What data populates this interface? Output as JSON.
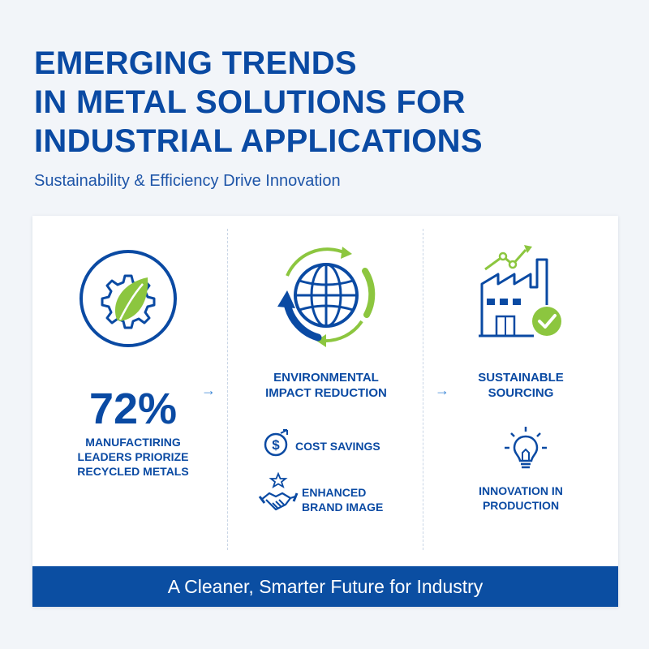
{
  "title_lines": [
    "EMERGING TRENDS",
    "IN METAL SOLUTIONS FOR",
    "INDUSTRIAL APPLICATIONS"
  ],
  "subtitle": "Sustainability & Efficiency Drive Innovation",
  "colors": {
    "primary": "#0a4aa3",
    "accent_green": "#8cc63f",
    "light_blue": "#3a86d6"
  },
  "column1": {
    "icon": "gear-leaf-icon",
    "stat": "72%",
    "stat_label_lines": [
      "MANUFACTIRING",
      "LEADERS PRIORIZE",
      "RECYCLED METALS"
    ]
  },
  "column2": {
    "icon": "globe-recycle-icon",
    "heading_lines": [
      "ENVIRONMENTAL",
      "IMPACT REDUCTION"
    ],
    "items": [
      {
        "icon": "dollar-icon",
        "label_lines": [
          "COST SAVINGS"
        ]
      },
      {
        "icon": "handshake-icon",
        "label_lines": [
          "ENHANCED",
          "BRAND IMAGE"
        ]
      }
    ]
  },
  "column3": {
    "icon": "factory-check-icon",
    "heading_lines": [
      "SUSTAINABLE",
      "SOURCING"
    ],
    "items": [
      {
        "icon": "lightbulb-icon",
        "label_lines": [
          "INNOVATION IN",
          "PRODUCTION"
        ]
      }
    ]
  },
  "arrow_glyph": "→",
  "footer": "A Cleaner, Smarter Future for Industry"
}
